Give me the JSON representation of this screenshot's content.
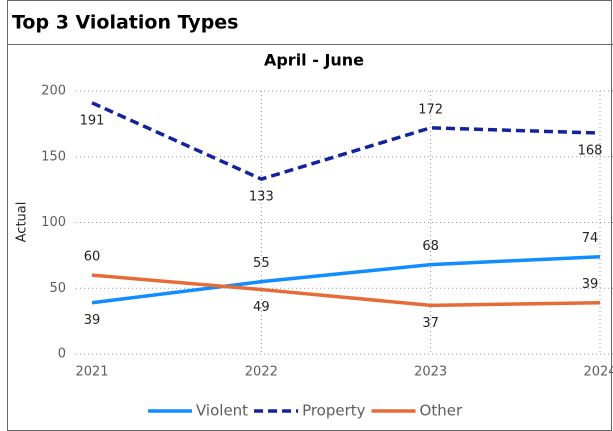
{
  "chart_data": {
    "type": "line",
    "title": "Top 3 Violation Types",
    "subtitle": "April - June",
    "y_label": "Actual",
    "categories": [
      "2021",
      "2022",
      "2023",
      "2024"
    ],
    "series": [
      {
        "name": "Violent",
        "color": "#118dff",
        "dashed": false,
        "values": [
          39,
          55,
          68,
          74
        ]
      },
      {
        "name": "Property",
        "color": "#12239e",
        "dashed": true,
        "values": [
          191,
          133,
          172,
          168
        ]
      },
      {
        "name": "Other",
        "color": "#e66c37",
        "dashed": false,
        "values": [
          60,
          49,
          37,
          39
        ]
      }
    ],
    "ylim": [
      0,
      200
    ],
    "yticks": [
      0,
      50,
      100,
      150,
      200
    ],
    "grid": true
  }
}
